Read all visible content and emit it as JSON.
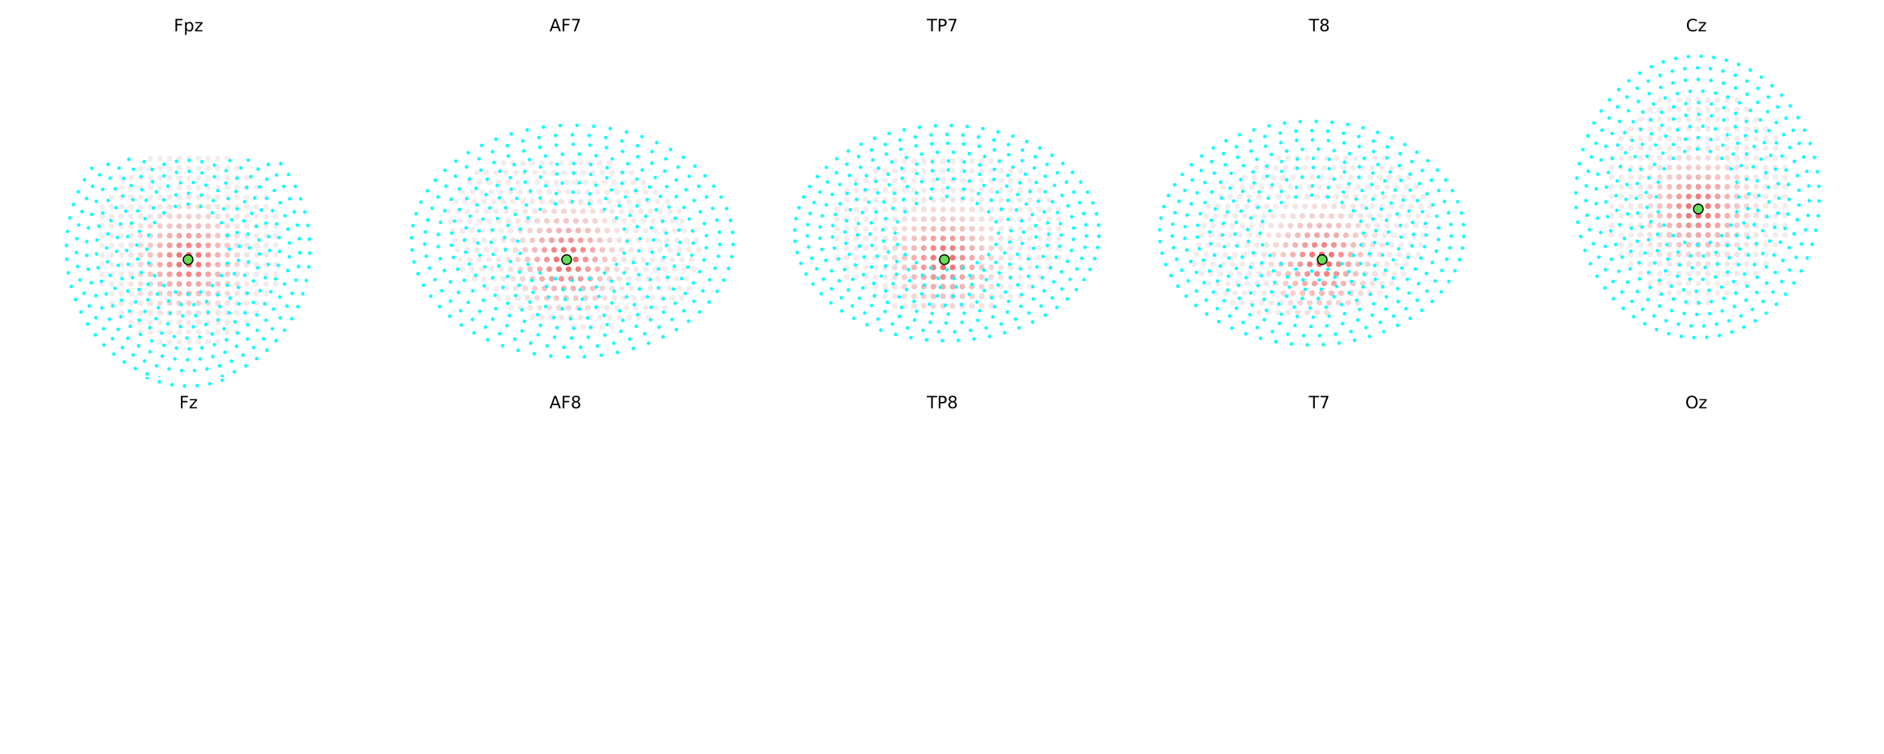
{
  "figure": {
    "panels": [
      {
        "title": "Fpz",
        "view": "front"
      },
      {
        "title": "AF7",
        "view": "side-left"
      },
      {
        "title": "TP7",
        "view": "side-left"
      },
      {
        "title": "T8",
        "view": "side-right"
      },
      {
        "title": "Cz",
        "view": "top"
      },
      {
        "title": "Fz",
        "view": "front-top"
      },
      {
        "title": "AF8",
        "view": "side-left"
      },
      {
        "title": "TP8",
        "view": "side-left"
      },
      {
        "title": "T7",
        "view": "side-right"
      },
      {
        "title": "Oz",
        "view": "back"
      }
    ],
    "colors": {
      "sensor": "#00ffff",
      "source_low": "#f0e6e6",
      "source_high": "#ee1111",
      "electrode": "#66dd55",
      "electrode_ring": "#000000"
    }
  }
}
